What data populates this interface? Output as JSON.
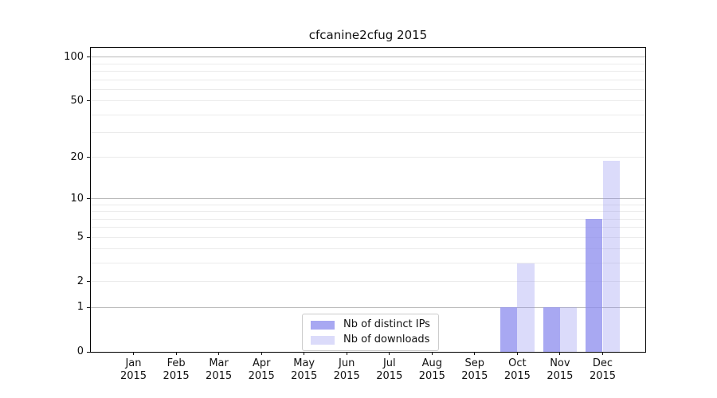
{
  "chart_data": {
    "type": "bar",
    "title": "cfcanine2cfug 2015",
    "x": [
      "Jan",
      "Feb",
      "Mar",
      "Apr",
      "May",
      "Jun",
      "Jul",
      "Aug",
      "Sep",
      "Oct",
      "Nov",
      "Dec"
    ],
    "x_sublabel": "2015",
    "series": [
      {
        "name": "Nb of distinct IPs",
        "values": [
          0,
          0,
          0,
          0,
          0,
          0,
          0,
          0,
          0,
          1,
          1,
          7
        ],
        "color": "rgba(140,140,238,0.76)"
      },
      {
        "name": "Nb of downloads",
        "values": [
          0,
          0,
          0,
          0,
          0,
          0,
          0,
          0,
          0,
          3,
          1,
          19
        ],
        "color": "rgba(140,140,238,0.31)"
      }
    ],
    "y_scale": "log1p",
    "ylim": [
      0,
      116
    ],
    "y_ticks": [
      0,
      1,
      2,
      5,
      10,
      20,
      50,
      100
    ],
    "y_major_gridlines": [
      1,
      10,
      100
    ],
    "y_minor_gridlines": [
      2,
      3,
      4,
      5,
      6,
      7,
      8,
      9,
      20,
      30,
      40,
      50,
      60,
      70,
      80,
      90
    ],
    "legend_position": "bottom-center",
    "colors": {
      "major_grid": "#b8b8b8",
      "minor_grid": "#ebebeb",
      "spine": "#000000",
      "text": "#111111"
    }
  }
}
